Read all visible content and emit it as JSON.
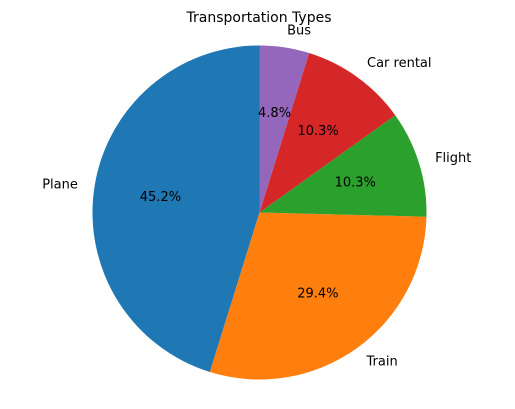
{
  "chart_data": {
    "type": "pie",
    "title": "Transportation Types",
    "start_angle_deg": 90,
    "direction": "counterclockwise",
    "slices": [
      {
        "label": "Plane",
        "value": 45.2,
        "pct_label": "45.2%",
        "color": "#1f77b4"
      },
      {
        "label": "Train",
        "value": 29.4,
        "pct_label": "29.4%",
        "color": "#ff7f0e"
      },
      {
        "label": "Flight",
        "value": 10.3,
        "pct_label": "10.3%",
        "color": "#2ca02c"
      },
      {
        "label": "Car rental",
        "value": 10.3,
        "pct_label": "10.3%",
        "color": "#d62728"
      },
      {
        "label": "Bus",
        "value": 4.8,
        "pct_label": "4.8%",
        "color": "#9467bd"
      }
    ]
  }
}
